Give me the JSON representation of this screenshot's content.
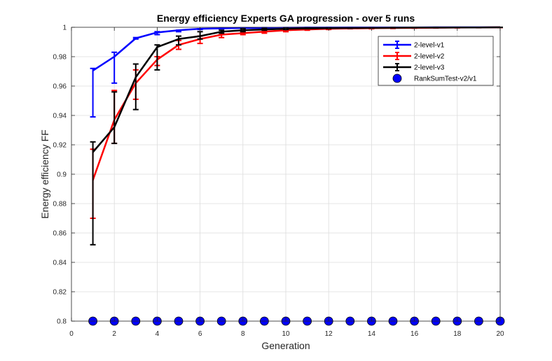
{
  "chart_data": {
    "type": "line",
    "title": "Energy efficiency Experts GA progression - over 5 runs",
    "xlabel": "Generation",
    "ylabel": "Energy efficiency FF",
    "xlim": [
      0,
      20
    ],
    "ylim": [
      0.8,
      1
    ],
    "xticks": [
      0,
      2,
      4,
      6,
      8,
      10,
      12,
      14,
      16,
      18,
      20
    ],
    "yticks": [
      0.8,
      0.82,
      0.84,
      0.86,
      0.88,
      0.9,
      0.92,
      0.94,
      0.96,
      0.98,
      1
    ],
    "ytick_labels": [
      "0.8",
      "0.82",
      "0.84",
      "0.86",
      "0.88",
      "0.9",
      "0.92",
      "0.94",
      "0.96",
      "0.98",
      "1"
    ],
    "grid": true,
    "legend_position": "top-right",
    "x": [
      1,
      2,
      3,
      4,
      5,
      6,
      7,
      8,
      9,
      10,
      11,
      12,
      13,
      14,
      15,
      16,
      17,
      18,
      19,
      20
    ],
    "series": [
      {
        "name": "2-level-v1",
        "color": "#0000ff",
        "values": [
          0.9705,
          0.98,
          0.9925,
          0.9965,
          0.998,
          0.999,
          0.9993,
          0.9995,
          0.9996,
          0.9997,
          0.9998,
          0.9998,
          0.9999,
          0.9999,
          0.9999,
          0.9999,
          1.0,
          1.0,
          1.0,
          1.0
        ],
        "err_low": [
          0.939,
          0.962,
          0.992,
          0.995,
          0.997,
          0.9985,
          0.999,
          0.999,
          0.9993,
          0.9995,
          0.9996,
          0.9997,
          0.9998,
          0.9998,
          0.9998,
          0.9999,
          0.9999,
          0.9999,
          1.0,
          1.0
        ],
        "err_high": [
          0.972,
          0.983,
          0.993,
          0.997,
          0.998,
          0.999,
          0.9995,
          0.9997,
          0.9998,
          0.9998,
          0.9999,
          0.9999,
          1.0,
          1.0,
          1.0,
          1.0,
          1.0,
          1.0,
          1.0,
          1.0
        ]
      },
      {
        "name": "2-level-v2",
        "color": "#ff0000",
        "values": [
          0.896,
          0.937,
          0.962,
          0.978,
          0.988,
          0.992,
          0.995,
          0.996,
          0.997,
          0.998,
          0.9985,
          0.999,
          0.9992,
          0.9994,
          0.9995,
          0.9996,
          0.9997,
          0.9998,
          0.9999,
          1.0
        ],
        "err_low": [
          0.87,
          0.921,
          0.951,
          0.974,
          0.985,
          0.989,
          0.993,
          0.995,
          0.996,
          0.997,
          0.998,
          0.9985,
          0.999,
          0.999,
          0.9992,
          0.9994,
          0.9995,
          0.9996,
          0.9997,
          0.9998
        ],
        "err_high": [
          0.917,
          0.957,
          0.971,
          0.98,
          0.991,
          0.994,
          0.996,
          0.997,
          0.998,
          0.9985,
          0.999,
          0.9993,
          0.9995,
          0.9996,
          0.9997,
          0.9998,
          0.9999,
          0.9999,
          1.0,
          1.0
        ]
      },
      {
        "name": "2-level-v3",
        "color": "#000000",
        "values": [
          0.915,
          0.932,
          0.966,
          0.9865,
          0.992,
          0.994,
          0.997,
          0.998,
          0.9985,
          0.999,
          0.9992,
          0.9994,
          0.9995,
          0.9996,
          0.9997,
          0.9998,
          0.9998,
          0.9999,
          0.9999,
          1.0
        ],
        "err_low": [
          0.852,
          0.921,
          0.944,
          0.971,
          0.988,
          0.992,
          0.996,
          0.997,
          0.998,
          0.9985,
          0.999,
          0.9992,
          0.9993,
          0.9995,
          0.9996,
          0.9997,
          0.9997,
          0.9998,
          0.9998,
          0.9999
        ],
        "err_high": [
          0.922,
          0.956,
          0.975,
          0.988,
          0.994,
          0.997,
          0.998,
          0.999,
          0.9992,
          0.9994,
          0.9995,
          0.9996,
          0.9997,
          0.9998,
          0.9999,
          0.9999,
          1.0,
          1.0,
          1.0,
          1.0
        ]
      },
      {
        "name": "RankSumTest-v2/v1",
        "color": "#0000ff",
        "marker": "circle",
        "values": [
          0.8,
          0.8,
          0.8,
          0.8,
          0.8,
          0.8,
          0.8,
          0.8,
          0.8,
          0.8,
          0.8,
          0.8,
          0.8,
          0.8,
          0.8,
          0.8,
          0.8,
          0.8,
          0.8,
          0.8
        ]
      }
    ]
  }
}
